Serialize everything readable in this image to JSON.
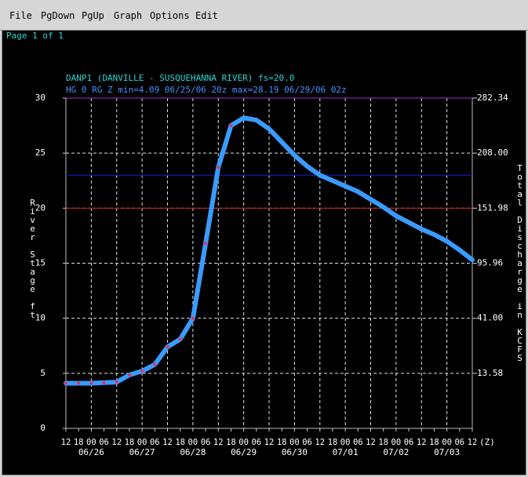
{
  "menu": [
    "File",
    "PgDown",
    "PgUp",
    "Graph",
    "Options",
    "Edit"
  ],
  "page_label": "Page 1 of 1",
  "chart_data": {
    "type": "line",
    "title": "DANP1 (DANVILLE - SUSQUEHANNA RIVER) fs=20.0",
    "subtitle": "HG 0 RG Z min=4.09 06/25/06 20z max=28.19 06/29/06 02z",
    "y_label": "River Stage ft",
    "y2_label": "Total Discharge in KCFS",
    "x_label": "(Z)",
    "categories": [
      "12",
      "18",
      "00",
      "06",
      "12",
      "18",
      "00",
      "06",
      "12",
      "18",
      "00",
      "06",
      "12",
      "18",
      "00",
      "06",
      "12",
      "18",
      "00",
      "06",
      "12",
      "18",
      "00",
      "06",
      "12",
      "18",
      "00",
      "06",
      "12",
      "18",
      "00",
      "06",
      "12"
    ],
    "dates": [
      null,
      null,
      "06/26",
      null,
      null,
      null,
      "06/27",
      null,
      null,
      null,
      "06/28",
      null,
      null,
      null,
      "06/29",
      null,
      null,
      null,
      "06/30",
      null,
      null,
      null,
      "07/01",
      null,
      null,
      null,
      "07/02",
      null,
      null,
      null,
      "07/03",
      null,
      null
    ],
    "series": [
      {
        "color": "#3a9bff",
        "values": [
          4.1,
          4.1,
          4.1,
          4.15,
          4.2,
          4.85,
          5.2,
          5.8,
          7.4,
          8.1,
          10.0,
          16.8,
          23.7,
          27.5,
          28.2,
          28.0,
          27.2,
          26.0,
          24.8,
          23.8,
          23.0,
          22.5,
          22.0,
          21.5,
          20.8,
          20.1,
          19.3,
          18.7,
          18.1,
          17.6,
          17.0,
          16.2,
          15.3
        ]
      },
      {
        "color": "#e0305a",
        "values": [
          4.1,
          4.1,
          4.1,
          4.15,
          4.2,
          4.85,
          5.2,
          5.8,
          7.4,
          8.1,
          10.0,
          16.8,
          23.7,
          27.5,
          null,
          null,
          null,
          null,
          null,
          null,
          null,
          null,
          null,
          null,
          null,
          null,
          null,
          null,
          null,
          null,
          null,
          null,
          null
        ]
      }
    ],
    "reference_lines": [
      {
        "value": 30,
        "color": "#9933cc"
      },
      {
        "value": 23,
        "color": "#1a1acc"
      },
      {
        "value": 20,
        "color": "#cc1a1a"
      }
    ],
    "ylim": [
      0,
      30
    ],
    "yticks": [
      0,
      5,
      10,
      15,
      20,
      25,
      30
    ],
    "y2ticks": [
      13.58,
      {
        "value": 41,
        "label": "41.00"
      },
      95.96,
      151.98,
      {
        "value": 208,
        "label": "208.00"
      },
      282.34
    ],
    "grid": true
  }
}
